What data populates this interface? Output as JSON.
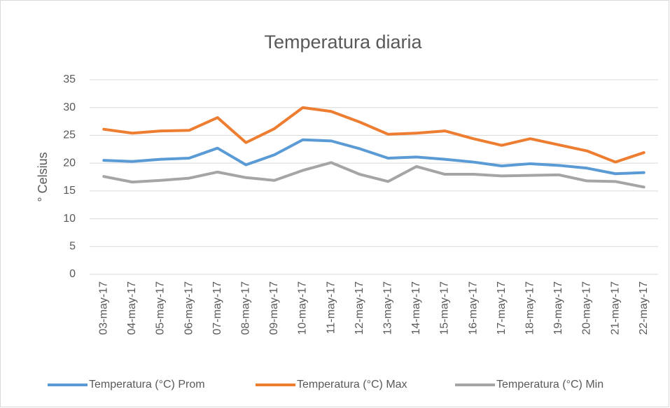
{
  "chart_data": {
    "type": "line",
    "title": "Temperatura diaria",
    "y_label": "° Celsius",
    "categories": [
      "03-may-17",
      "04-may-17",
      "05-may-17",
      "06-may-17",
      "07-may-17",
      "08-may-17",
      "09-may-17",
      "10-may-17",
      "11-may-17",
      "12-may-17",
      "13-may-17",
      "14-may-17",
      "15-may-17",
      "16-may-17",
      "17-may-17",
      "18-may-17",
      "19-may-17",
      "20-may-17",
      "21-may-17",
      "22-may-17"
    ],
    "series": [
      {
        "name": "Temperatura (°C) Prom",
        "color": "#5b9bd5",
        "values": [
          20.5,
          20.3,
          20.7,
          20.9,
          22.7,
          19.7,
          21.5,
          24.2,
          24.0,
          22.6,
          20.9,
          21.1,
          20.7,
          20.2,
          19.5,
          19.9,
          19.6,
          19.1,
          18.1,
          18.3
        ]
      },
      {
        "name": "Temperatura (°C) Max",
        "color": "#ed7d31",
        "values": [
          26.1,
          25.4,
          25.8,
          25.9,
          28.2,
          23.7,
          26.2,
          30.0,
          29.3,
          27.4,
          25.2,
          25.4,
          25.8,
          24.4,
          23.2,
          24.4,
          23.3,
          22.2,
          20.2,
          21.9
        ]
      },
      {
        "name": "Temperatura (°C) Min",
        "color": "#a5a5a5",
        "values": [
          17.6,
          16.6,
          16.9,
          17.3,
          18.4,
          17.4,
          16.9,
          18.7,
          20.1,
          18.0,
          16.7,
          19.4,
          18.0,
          18.0,
          17.7,
          17.8,
          17.9,
          16.8,
          16.7,
          15.7
        ]
      }
    ],
    "ylim": [
      0,
      35
    ],
    "yticks": [
      0,
      5,
      10,
      15,
      20,
      25,
      30,
      35
    ],
    "grid": true,
    "legend": "bottom"
  }
}
